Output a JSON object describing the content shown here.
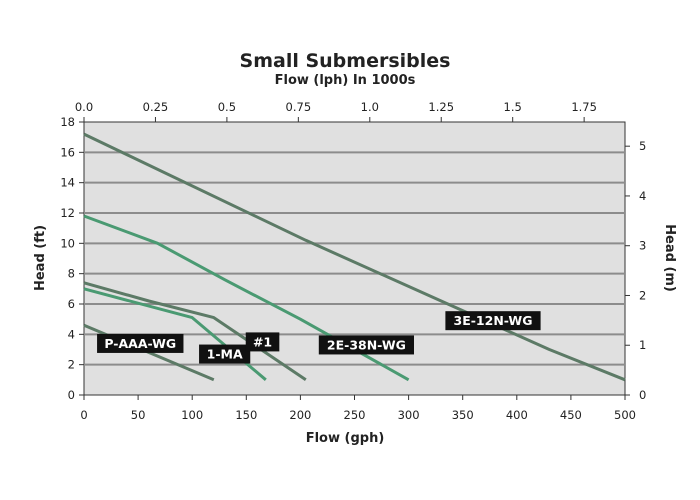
{
  "chart_data": {
    "type": "line",
    "title": "Small Submersibles",
    "subtitle": "Flow (lph) In 1000s",
    "xlabel": "Flow (gph)",
    "ylabel": "Head (ft)",
    "y2label": "Head (m)",
    "xlim": [
      0,
      500
    ],
    "ylim": [
      0,
      18
    ],
    "top_axis": {
      "lim": [
        0,
        1.893
      ],
      "ticks": [
        "0.0",
        "0.25",
        "0.5",
        "0.75",
        "1.0",
        "1.25",
        "1.5",
        "1.75"
      ],
      "values": [
        0,
        0.25,
        0.5,
        0.75,
        1.0,
        1.25,
        1.5,
        1.75
      ]
    },
    "right_axis": {
      "lim": [
        0,
        5.486
      ],
      "ticks": [
        "0",
        "1",
        "2",
        "3",
        "4",
        "5"
      ],
      "values": [
        0,
        1,
        2,
        3,
        4,
        5
      ]
    },
    "x_ticks": [
      0,
      50,
      100,
      150,
      200,
      250,
      300,
      350,
      400,
      450,
      500
    ],
    "y_ticks": [
      0,
      2,
      4,
      6,
      8,
      10,
      12,
      14,
      16,
      18
    ],
    "grid": true,
    "background": "#e0e0e0",
    "series": [
      {
        "name": "P-AAA-WG",
        "color": "#5c7a66",
        "x": [
          0,
          120
        ],
        "y": [
          4.6,
          1.0
        ]
      },
      {
        "name": "1-MA",
        "color": "#4a9a72",
        "x": [
          0,
          100,
          168
        ],
        "y": [
          7.0,
          5.1,
          1.0
        ]
      },
      {
        "name": "#1",
        "color": "#5c7a66",
        "x": [
          0,
          60,
          120,
          205
        ],
        "y": [
          7.4,
          6.2,
          5.1,
          1.0
        ]
      },
      {
        "name": "2E-38N-WG",
        "color": "#4a9a72",
        "x": [
          0,
          68,
          130,
          200,
          300
        ],
        "y": [
          11.8,
          10.0,
          7.6,
          5.0,
          1.0
        ]
      },
      {
        "name": "3E-12N-WG",
        "color": "#5c7a66",
        "x": [
          0,
          205,
          430,
          500
        ],
        "y": [
          17.2,
          10.2,
          3.0,
          1.0
        ]
      }
    ],
    "labels": [
      {
        "text": "P-AAA-WG",
        "x": 52,
        "y": 3.4
      },
      {
        "text": "1-MA",
        "x": 130,
        "y": 2.7
      },
      {
        "text": "#1",
        "x": 165,
        "y": 3.5
      },
      {
        "text": "2E-38N-WG",
        "x": 261,
        "y": 3.3
      },
      {
        "text": "3E-12N-WG",
        "x": 378,
        "y": 4.9
      }
    ]
  }
}
